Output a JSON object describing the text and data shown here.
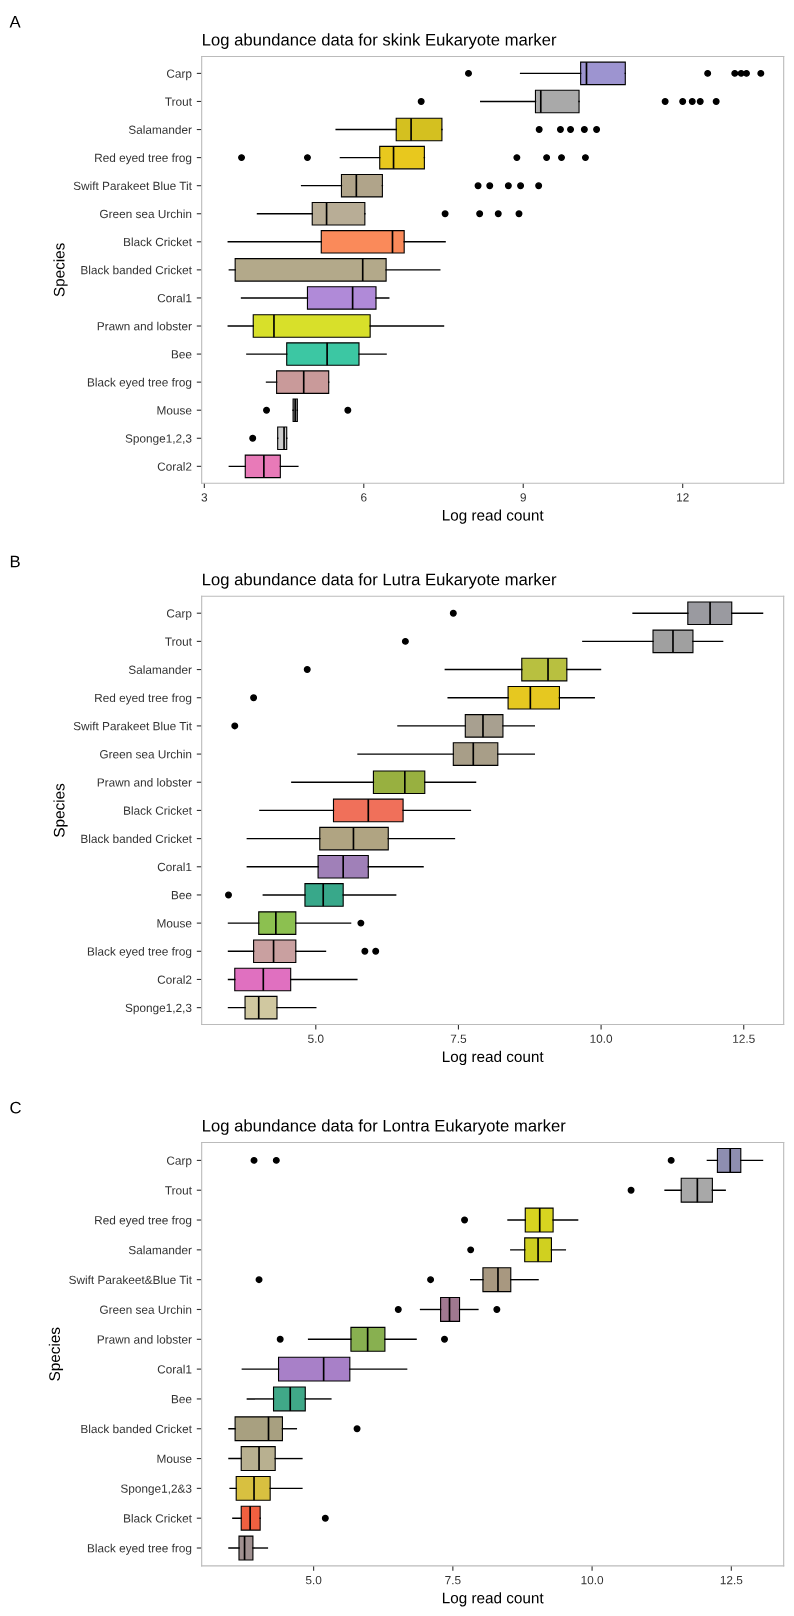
{
  "chart_data": [
    {
      "type": "box",
      "orientation": "horizontal",
      "title": "Log abundance data for skink Eukaryote marker",
      "xlabel": "Log read count",
      "ylabel": "Species",
      "annotations": [
        "A"
      ],
      "categories": [
        "Carp",
        "Trout",
        "Salamander",
        "Red eyed tree frog",
        "Swift Parakeet Blue Tit",
        "Green sea Urchin",
        "Black Cricket",
        "Black banded Cricket",
        "Coral1",
        "Prawn and lobster",
        "Bee",
        "Black eyed tree frog",
        "Mouse",
        "Sponge1,2,3",
        "Coral2"
      ],
      "colors": [
        "#9d94d0",
        "#a9a9a9",
        "#d4c020",
        "#e8c81e",
        "#b0a48a",
        "#b8ad96",
        "#fa8a5a",
        "#b3a98a",
        "#b08ad8",
        "#d8e02a",
        "#3cc7a3",
        "#c99a9a",
        "#999999",
        "#cccccc",
        "#e87ab8"
      ],
      "boxes": [
        {
          "low": 8.95,
          "q1": 10.08,
          "median": 10.19,
          "q3": 10.92,
          "high": 10.92,
          "outliers": [
            7.97,
            12.47,
            12.98,
            13.1,
            13.2,
            13.47
          ]
        },
        {
          "low": 8.2,
          "q1": 9.23,
          "median": 9.33,
          "q3": 10.05,
          "high": 10.05,
          "outliers": [
            7.08,
            11.67,
            12.0,
            12.18,
            12.33,
            12.63
          ]
        },
        {
          "low": 5.48,
          "q1": 6.61,
          "median": 6.89,
          "q3": 7.47,
          "high": 7.47,
          "outliers": [
            9.3,
            9.7,
            9.89,
            10.15,
            10.38
          ]
        },
        {
          "low": 5.56,
          "q1": 6.3,
          "median": 6.56,
          "q3": 7.14,
          "high": 7.14,
          "outliers": [
            3.7,
            4.94,
            8.88,
            9.44,
            9.72,
            10.17
          ]
        },
        {
          "low": 4.83,
          "q1": 5.58,
          "median": 5.86,
          "q3": 6.35,
          "high": 6.35,
          "outliers": [
            8.15,
            8.37,
            8.72,
            8.95,
            9.29
          ]
        },
        {
          "low": 4.0,
          "q1": 5.03,
          "median": 5.3,
          "q3": 6.02,
          "high": 6.02,
          "outliers": [
            7.53,
            8.18,
            8.53,
            8.92
          ]
        },
        {
          "low": 3.45,
          "q1": 5.2,
          "median": 6.54,
          "q3": 6.76,
          "high": 7.53
        },
        {
          "low": 3.47,
          "q1": 3.58,
          "median": 5.98,
          "q3": 6.42,
          "high": 7.43
        },
        {
          "low": 3.7,
          "q1": 4.94,
          "median": 5.79,
          "q3": 6.23,
          "high": 6.47
        },
        {
          "low": 3.45,
          "q1": 3.92,
          "median": 4.31,
          "q3": 6.12,
          "high": 7.5
        },
        {
          "low": 3.8,
          "q1": 4.55,
          "median": 5.31,
          "q3": 5.91,
          "high": 6.42
        },
        {
          "low": 4.17,
          "q1": 4.36,
          "median": 4.87,
          "q3": 5.34,
          "high": 5.34
        },
        {
          "low": 4.67,
          "q1": 4.67,
          "median": 4.71,
          "q3": 4.75,
          "high": 4.75,
          "outliers": [
            4.17,
            5.7
          ]
        },
        {
          "low": 4.38,
          "q1": 4.38,
          "median": 4.5,
          "q3": 4.55,
          "high": 4.55,
          "outliers": [
            3.91
          ]
        },
        {
          "low": 3.47,
          "q1": 3.77,
          "median": 4.12,
          "q3": 4.43,
          "high": 4.76
        }
      ],
      "xlim": [
        2.95,
        13.9
      ],
      "xticks": [
        3,
        6,
        9,
        12
      ]
    },
    {
      "type": "box",
      "orientation": "horizontal",
      "title": "Log abundance data for Lutra Eukaryote marker",
      "xlabel": "Log read count",
      "ylabel": "Species",
      "annotations": [
        "B"
      ],
      "categories": [
        "Carp",
        "Trout",
        "Salamander",
        "Red eyed tree frog",
        "Swift Parakeet Blue Tit",
        "Green sea Urchin",
        "Prawn and lobster",
        "Black Cricket",
        "Black banded Cricket",
        "Coral1",
        "Bee",
        "Mouse",
        "Black eyed tree frog",
        "Coral2",
        "Sponge1,2,3"
      ],
      "colors": [
        "#9a9aa0",
        "#a0a0a0",
        "#b8c040",
        "#e6c820",
        "#a8a090",
        "#a89e88",
        "#98b040",
        "#f0705a",
        "#b0a482",
        "#a080b8",
        "#38a88a",
        "#8cc050",
        "#c9a0a0",
        "#e070c0",
        "#d0c8a0"
      ],
      "boxes": [
        {
          "low": 10.56,
          "q1": 11.52,
          "median": 11.91,
          "q3": 12.29,
          "high": 12.83,
          "outliers": [
            7.41
          ]
        },
        {
          "low": 9.68,
          "q1": 10.91,
          "median": 11.26,
          "q3": 11.61,
          "high": 12.13,
          "outliers": [
            6.57
          ]
        },
        {
          "low": 7.27,
          "q1": 8.61,
          "median": 9.07,
          "q3": 9.4,
          "high": 9.99,
          "outliers": [
            4.85
          ]
        },
        {
          "low": 7.32,
          "q1": 8.37,
          "median": 8.76,
          "q3": 9.27,
          "high": 9.88,
          "outliers": [
            3.91
          ]
        },
        {
          "low": 6.44,
          "q1": 7.62,
          "median": 7.93,
          "q3": 8.28,
          "high": 8.83,
          "outliers": [
            3.58
          ]
        },
        {
          "low": 5.74,
          "q1": 7.41,
          "median": 7.76,
          "q3": 8.19,
          "high": 8.83
        },
        {
          "low": 4.58,
          "q1": 6.01,
          "median": 6.56,
          "q3": 6.91,
          "high": 7.8
        },
        {
          "low": 4.02,
          "q1": 5.31,
          "median": 5.92,
          "q3": 6.53,
          "high": 7.71
        },
        {
          "low": 3.8,
          "q1": 5.07,
          "median": 5.66,
          "q3": 6.27,
          "high": 7.43
        },
        {
          "low": 3.8,
          "q1": 5.04,
          "median": 5.48,
          "q3": 5.92,
          "high": 6.88
        },
        {
          "low": 4.08,
          "q1": 4.81,
          "median": 5.13,
          "q3": 5.48,
          "high": 6.4,
          "outliers": [
            3.47
          ]
        },
        {
          "low": 3.47,
          "q1": 4.0,
          "median": 4.3,
          "q3": 4.65,
          "high": 5.61,
          "outliers": [
            5.79
          ]
        },
        {
          "low": 3.47,
          "q1": 3.91,
          "median": 4.26,
          "q3": 4.65,
          "high": 5.17,
          "outliers": [
            5.86,
            6.05
          ]
        },
        {
          "low": 3.47,
          "q1": 3.58,
          "median": 4.08,
          "q3": 4.56,
          "high": 5.72
        },
        {
          "low": 3.47,
          "q1": 3.76,
          "median": 4.0,
          "q3": 4.32,
          "high": 5.0
        }
      ],
      "xlim": [
        3.0,
        13.2
      ],
      "xticks": [
        {
          "value": 5,
          "label": "5.0"
        },
        {
          "value": 7.5,
          "label": "7.5"
        },
        {
          "value": 10,
          "label": "10.0"
        },
        {
          "value": 12.5,
          "label": "12.5"
        }
      ]
    },
    {
      "type": "box",
      "orientation": "horizontal",
      "title": "Log abundance data for Lontra Eukaryote marker",
      "xlabel": "Log read count",
      "ylabel": "Species",
      "annotations": [
        "C"
      ],
      "categories": [
        "Carp",
        "Trout",
        "Red eyed tree frog",
        "Salamander",
        "Swift Parakeet&Blue Tit",
        "Green sea Urchin",
        "Prawn and lobster",
        "Coral1",
        "Bee",
        "Black banded Cricket",
        "Mouse",
        "Sponge1,2&3",
        "Black Cricket",
        "Black eyed tree frog"
      ],
      "colors": [
        "#8e8eb0",
        "#a8a8a8",
        "#d8d420",
        "#d0d020",
        "#a89880",
        "#a07890",
        "#88b050",
        "#a880c8",
        "#40a888",
        "#a8a080",
        "#b8b090",
        "#d8c040",
        "#f06040",
        "#a09090"
      ],
      "boxes": [
        {
          "low": 12.07,
          "q1": 12.25,
          "median": 12.48,
          "q3": 12.67,
          "high": 13.06,
          "outliers": [
            3.93,
            4.33,
            11.42
          ]
        },
        {
          "low": 11.31,
          "q1": 11.6,
          "median": 11.89,
          "q3": 12.16,
          "high": 12.39,
          "outliers": [
            10.7
          ]
        },
        {
          "low": 8.49,
          "q1": 8.8,
          "median": 9.06,
          "q3": 9.3,
          "high": 9.74,
          "outliers": [
            7.71
          ]
        },
        {
          "low": 8.54,
          "q1": 8.79,
          "median": 9.03,
          "q3": 9.27,
          "high": 9.52,
          "outliers": [
            7.82
          ]
        },
        {
          "low": 7.82,
          "q1": 8.04,
          "median": 8.31,
          "q3": 8.54,
          "high": 9.03,
          "outliers": [
            4.02,
            7.1
          ]
        },
        {
          "low": 6.92,
          "q1": 7.28,
          "median": 7.44,
          "q3": 7.62,
          "high": 7.95,
          "outliers": [
            6.52,
            8.29
          ]
        },
        {
          "low": 4.91,
          "q1": 5.67,
          "median": 5.97,
          "q3": 6.28,
          "high": 6.84,
          "outliers": [
            4.4,
            7.35
          ]
        },
        {
          "low": 3.72,
          "q1": 4.37,
          "median": 5.18,
          "q3": 5.65,
          "high": 6.67
        },
        {
          "low": 3.81,
          "q1": 4.28,
          "median": 4.58,
          "q3": 4.85,
          "high": 5.31
        },
        {
          "low": 3.48,
          "q1": 3.59,
          "median": 4.19,
          "q3": 4.44,
          "high": 4.69,
          "outliers": [
            5.78
          ]
        },
        {
          "low": 3.48,
          "q1": 3.7,
          "median": 4.02,
          "q3": 4.31,
          "high": 4.79
        },
        {
          "low": 3.5,
          "q1": 3.61,
          "median": 3.93,
          "q3": 4.22,
          "high": 4.79
        },
        {
          "low": 3.55,
          "q1": 3.7,
          "median": 3.86,
          "q3": 4.04,
          "high": 4.04,
          "outliers": [
            5.21
          ]
        },
        {
          "low": 3.48,
          "q1": 3.66,
          "median": 3.76,
          "q3": 3.91,
          "high": 4.17
        }
      ],
      "xlim": [
        2.99,
        13.44
      ],
      "xticks": [
        {
          "value": 5,
          "label": "5.0"
        },
        {
          "value": 7.5,
          "label": "7.5"
        },
        {
          "value": 10,
          "label": "10.0"
        },
        {
          "value": 12.5,
          "label": "12.5"
        }
      ]
    }
  ]
}
